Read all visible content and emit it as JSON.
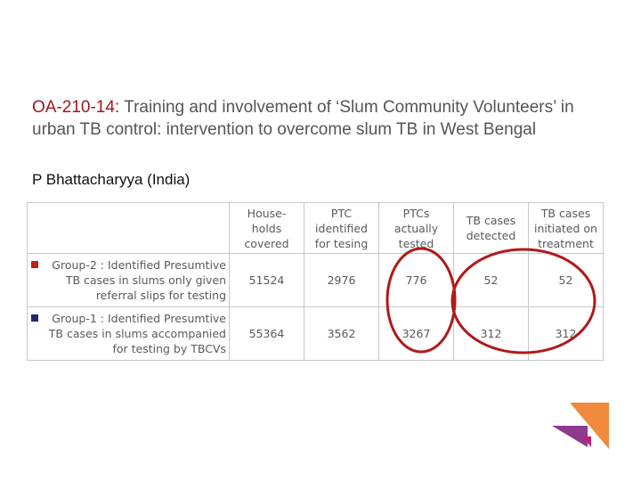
{
  "slide": {
    "title_code": "OA-210-14:",
    "title_text": " Training and involvement of ‘Slum Community Volunteers’ in urban TB control: intervention to overcome slum TB in West Bengal",
    "author": "P Bhattacharyya (India)"
  },
  "table": {
    "headers": [
      "House-\nholds\ncovered",
      "PTC\nidentified\nfor tesing",
      "PTCs\nactually\ntested",
      "TB cases\ndetected",
      "TB cases\ninitiated on\ntreatment"
    ],
    "rows": [
      {
        "label": "Group-2 : Identified Presumtive\nTB cases in slums only given\nreferral slips for testing",
        "marker_color": "#c0201e",
        "values": [
          "51524",
          "2976",
          "776",
          "52",
          "52"
        ]
      },
      {
        "label": "Group-1 : Identified Presumtive\nTB cases in slums accompanied\nfor testing by TBCVs",
        "marker_color": "#1f2a6b",
        "values": [
          "55364",
          "3562",
          "3267",
          "312",
          "312"
        ]
      }
    ]
  },
  "colors": {
    "title_code": "#a3151d",
    "annotation_circle": "#b01a1a",
    "logo_orange": "#f08a3c",
    "logo_purple": "#8e3a8f",
    "logo_magenta": "#c0206e"
  }
}
